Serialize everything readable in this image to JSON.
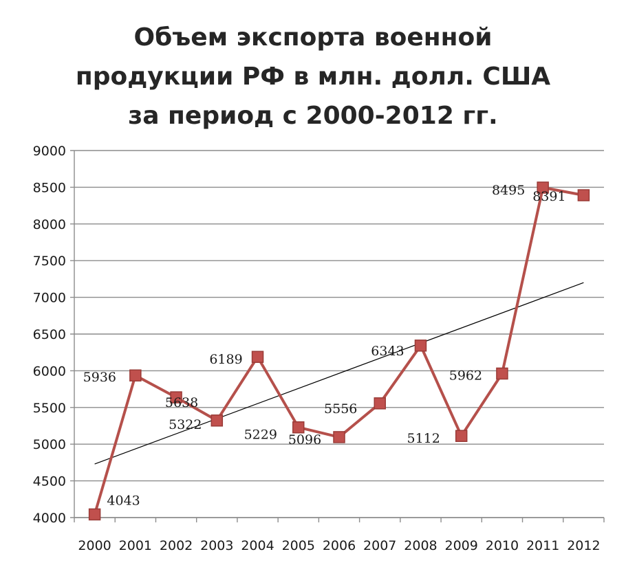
{
  "title_lines": [
    "Объем экспорта военной",
    "продукции РФ в млн. долл. США",
    "за период с 2000-2012 гг."
  ],
  "colors": {
    "series": "#b5504b",
    "marker_fill": "#c0504d",
    "trend": "#000000",
    "grid": "#8c8c8c"
  },
  "chart_data": {
    "type": "line",
    "title": "Объем экспорта военной продукции РФ в млн. долл. США за период с 2000-2012 гг.",
    "categories": [
      "2000",
      "2001",
      "2002",
      "2003",
      "2004",
      "2005",
      "2006",
      "2007",
      "2008",
      "2009",
      "2010",
      "2011",
      "2012"
    ],
    "series": [
      {
        "values": [
          4043,
          5936,
          5638,
          5322,
          6189,
          5229,
          5096,
          5556,
          6343,
          5112,
          5962,
          8495,
          8391
        ],
        "data_labels": [
          "4043",
          "5936",
          "5638",
          "5322",
          "6189",
          "5229",
          "5096",
          "5556",
          "6343",
          "5112",
          "5962",
          "8495",
          "8391"
        ],
        "marker": "square"
      }
    ],
    "trendline": {
      "type": "linear",
      "start": 4730,
      "end": 7200
    },
    "ylim": [
      4000,
      9000
    ],
    "yticks": [
      "4000",
      "4500",
      "5000",
      "5500",
      "6000",
      "6500",
      "7000",
      "7500",
      "8000",
      "8500",
      "9000"
    ],
    "grid": true,
    "legend": "none"
  }
}
